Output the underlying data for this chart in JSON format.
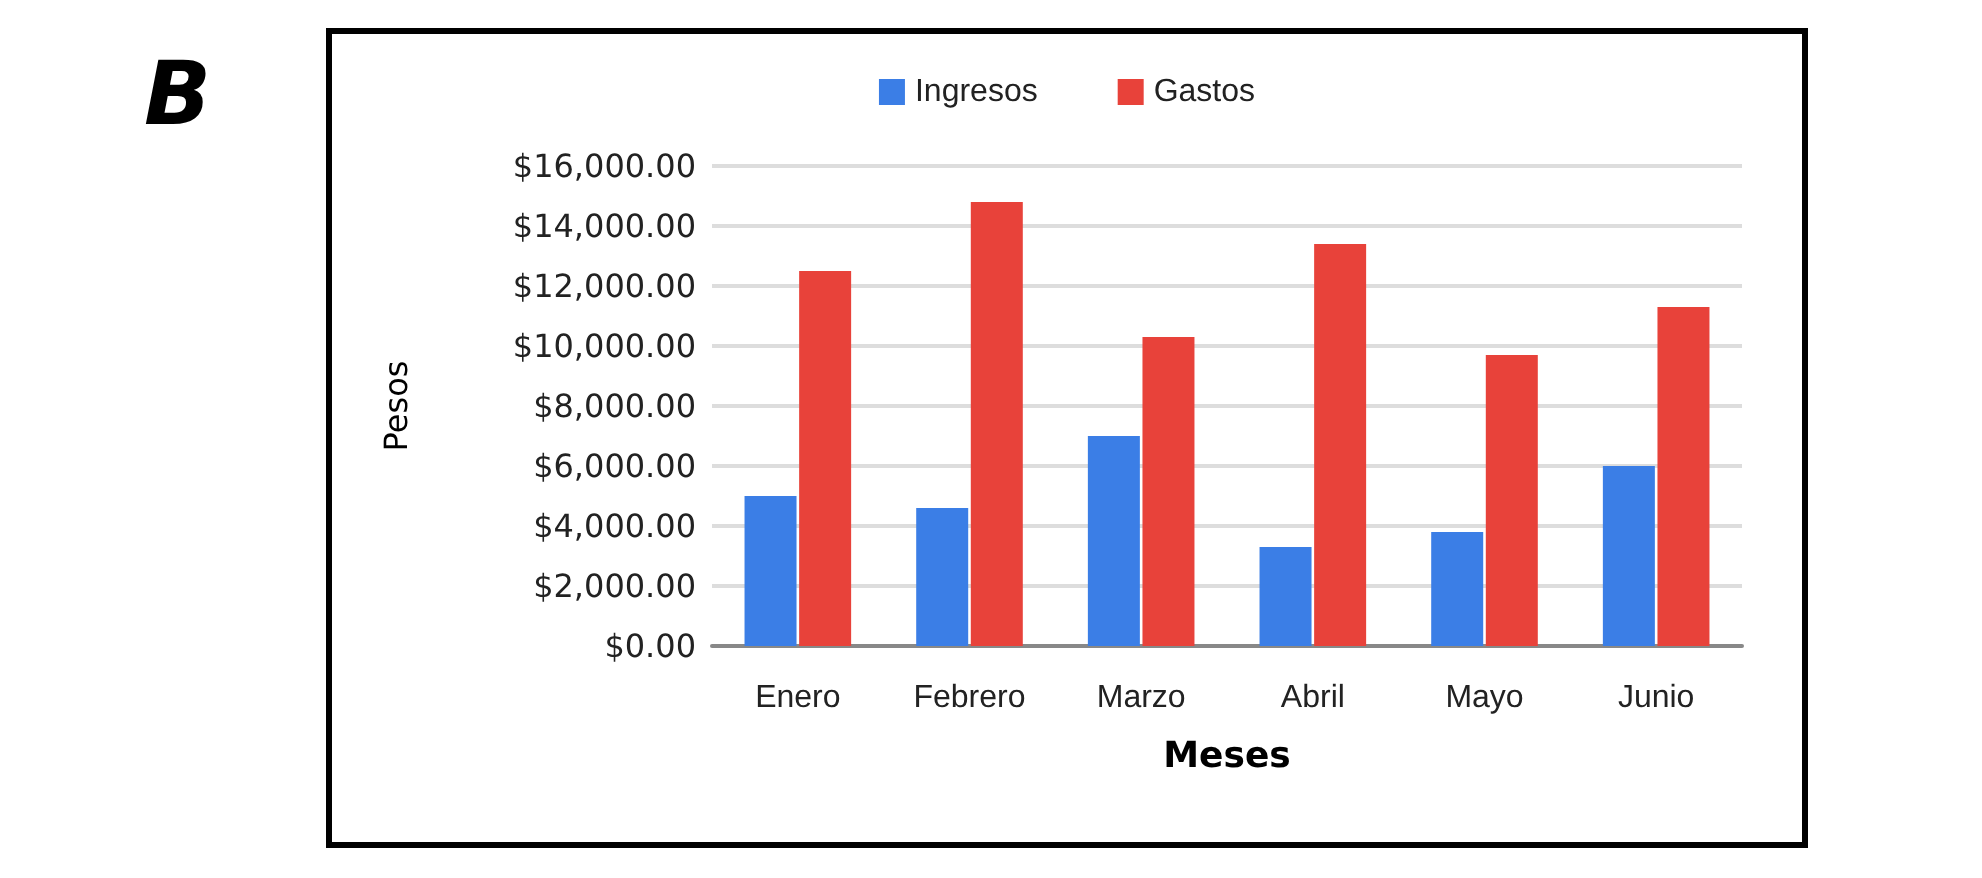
{
  "chart_data": {
    "type": "bar",
    "xlabel": "Meses",
    "ylabel": "Pesos",
    "annotations": [
      "B"
    ],
    "categories": [
      "Enero",
      "Febrero",
      "Marzo",
      "Abril",
      "Mayo",
      "Junio"
    ],
    "series": [
      {
        "name": "Ingresos",
        "color": "#3b7ee6",
        "values": [
          5000,
          4600,
          7000,
          3300,
          3800,
          6000
        ]
      },
      {
        "name": "Gastos",
        "color": "#e8423a",
        "values": [
          12500,
          14800,
          10300,
          13400,
          9700,
          11300
        ]
      }
    ],
    "ylim": [
      0,
      16000
    ],
    "yticks": [
      {
        "value": 0,
        "label": "$0.00"
      },
      {
        "value": 2000,
        "label": "$2,000.00"
      },
      {
        "value": 4000,
        "label": "$4,000.00"
      },
      {
        "value": 6000,
        "label": "$6,000.00"
      },
      {
        "value": 8000,
        "label": "$8,000.00"
      },
      {
        "value": 10000,
        "label": "$10,000.00"
      },
      {
        "value": 12000,
        "label": "$12,000.00"
      },
      {
        "value": 14000,
        "label": "$14,000.00"
      },
      {
        "value": 16000,
        "label": "$16,000.00"
      }
    ],
    "grid": "y",
    "legend": "top"
  }
}
